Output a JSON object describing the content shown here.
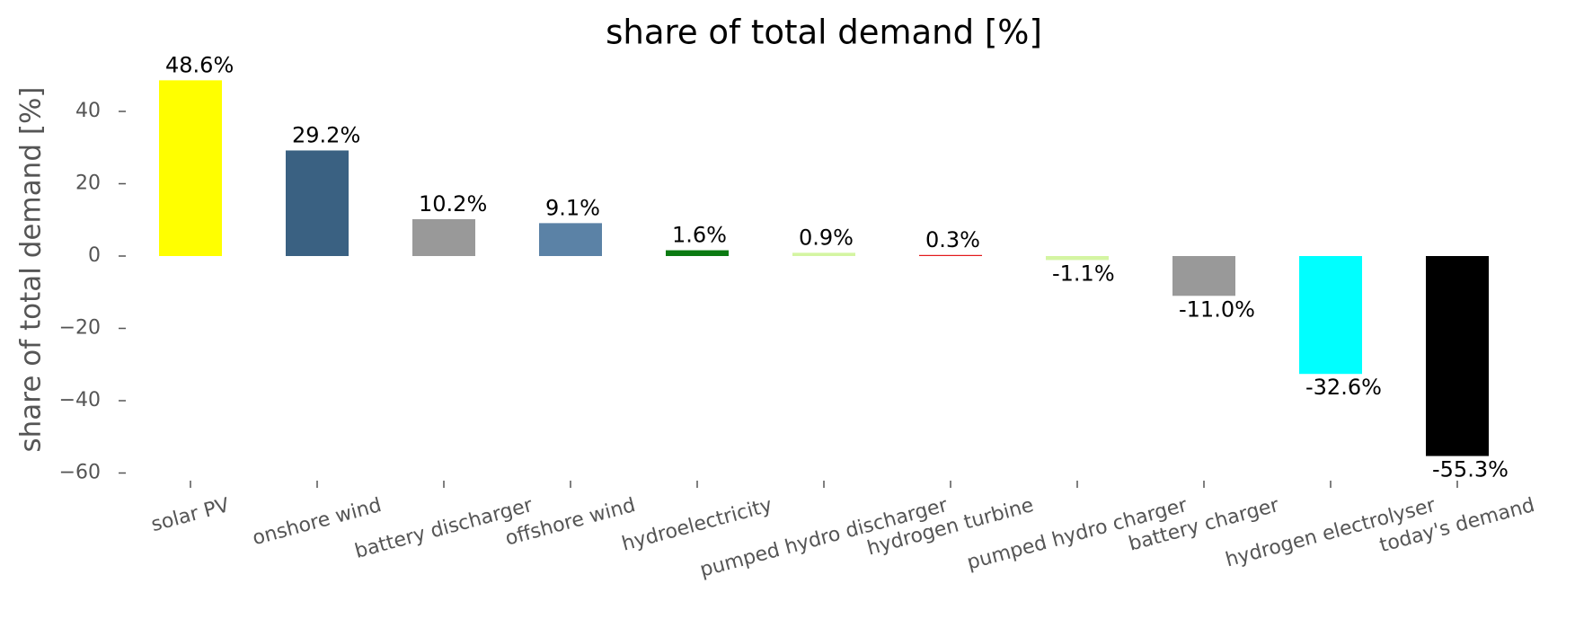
{
  "chart_data": {
    "type": "bar",
    "title": "share of total demand [%]",
    "ylabel": "share of total demand [%]",
    "categories": [
      "solar PV",
      "onshore wind",
      "battery discharger",
      "offshore wind",
      "hydroelectricity",
      "pumped hydro discharger",
      "hydrogen turbine",
      "pumped hydro charger",
      "battery charger",
      "hydrogen electrolyser",
      "today's demand"
    ],
    "values": [
      48.6,
      29.2,
      10.2,
      9.1,
      1.6,
      0.9,
      0.3,
      -1.1,
      -11.0,
      -32.6,
      -55.3
    ],
    "value_labels": [
      "48.6%",
      "29.2%",
      "10.2%",
      "9.1%",
      "1.6%",
      "0.9%",
      "0.3%",
      "-1.1%",
      "-11.0%",
      "-32.6%",
      "-55.3%"
    ],
    "colors": [
      "#ffff00",
      "#3a6182",
      "#999999",
      "#5b82a6",
      "#0b7a12",
      "#d4f5a2",
      "#e31a1c",
      "#d4f5a2",
      "#999999",
      "#00ffff",
      "#000000"
    ],
    "ylim": [
      -62,
      52
    ],
    "yticks": [
      {
        "value": -60,
        "label": "−60"
      },
      {
        "value": -40,
        "label": "−40"
      },
      {
        "value": -20,
        "label": "−20"
      },
      0,
      20,
      40
    ],
    "grid": false
  }
}
